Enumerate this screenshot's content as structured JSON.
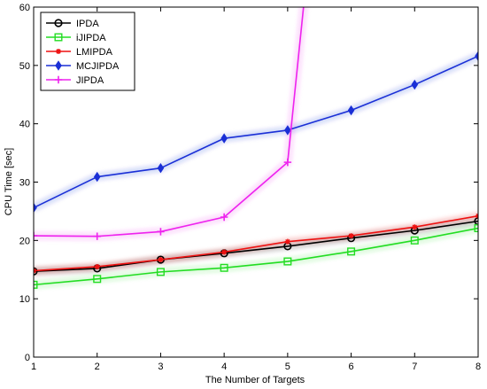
{
  "chart_data": {
    "type": "line",
    "title": "",
    "xlabel": "The Number of Targets",
    "ylabel": "CPU Time [sec]",
    "xlim": [
      1,
      8
    ],
    "ylim": [
      0,
      60
    ],
    "xticks": [
      1,
      2,
      3,
      4,
      5,
      6,
      7,
      8
    ],
    "yticks": [
      0,
      10,
      20,
      30,
      40,
      50,
      60
    ],
    "grid": false,
    "legend_position": "top-left",
    "x": [
      1,
      2,
      3,
      4,
      5,
      6,
      7,
      8
    ],
    "series": [
      {
        "name": "IPDA",
        "color": "#000000",
        "marker": "circle",
        "values": [
          14.7,
          15.2,
          16.7,
          17.8,
          19.0,
          20.4,
          21.7,
          23.3
        ]
      },
      {
        "name": "iJIPDA",
        "color": "#22dd22",
        "marker": "square",
        "values": [
          12.4,
          13.4,
          14.6,
          15.3,
          16.4,
          18.1,
          20.0,
          22.1
        ]
      },
      {
        "name": "LMIPDA",
        "color": "#ee1111",
        "marker": "star",
        "values": [
          14.8,
          15.5,
          16.7,
          18.0,
          19.8,
          20.8,
          22.3,
          24.2
        ]
      },
      {
        "name": "MCJIPDA",
        "color": "#1a2fd6",
        "marker": "diamond",
        "values": [
          25.6,
          30.9,
          32.4,
          37.5,
          38.9,
          42.3,
          46.7,
          51.6
        ]
      },
      {
        "name": "JIPDA",
        "color": "#ee22ee",
        "marker": "plus",
        "values": [
          20.8,
          20.7,
          21.5,
          24.0,
          33.4,
          null,
          null,
          null
        ],
        "exit_to": {
          "x": 5.25,
          "y": 60
        }
      }
    ]
  }
}
